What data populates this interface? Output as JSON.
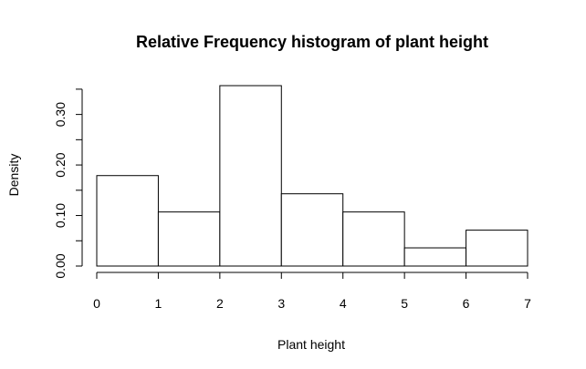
{
  "chart_data": {
    "type": "histogram",
    "title": "Relative Frequency histogram of plant height",
    "xlabel": "Plant height",
    "ylabel": "Density",
    "bins": [
      {
        "from": 0,
        "to": 1,
        "value": 0.179
      },
      {
        "from": 1,
        "to": 2,
        "value": 0.107
      },
      {
        "from": 2,
        "to": 3,
        "value": 0.357
      },
      {
        "from": 3,
        "to": 4,
        "value": 0.143
      },
      {
        "from": 4,
        "to": 5,
        "value": 0.107
      },
      {
        "from": 5,
        "to": 6,
        "value": 0.036
      },
      {
        "from": 6,
        "to": 7,
        "value": 0.071
      }
    ],
    "xlim": [
      0,
      7
    ],
    "ylim": [
      0,
      0.357
    ],
    "x_ticks": [
      0,
      1,
      2,
      3,
      4,
      5,
      6,
      7
    ],
    "x_tick_labels": [
      "0",
      "1",
      "2",
      "3",
      "4",
      "5",
      "6",
      "7"
    ],
    "y_ticks": [
      0,
      0.05,
      0.1,
      0.15,
      0.2,
      0.25,
      0.3,
      0.35
    ],
    "y_tick_labels": [
      "0.00",
      "",
      "0.10",
      "",
      "0.20",
      "",
      "0.30",
      ""
    ],
    "grid": false,
    "legend": "none",
    "colors": {
      "bar_fill": "#ffffff",
      "bar_stroke": "#000000",
      "text": "#000000"
    }
  }
}
